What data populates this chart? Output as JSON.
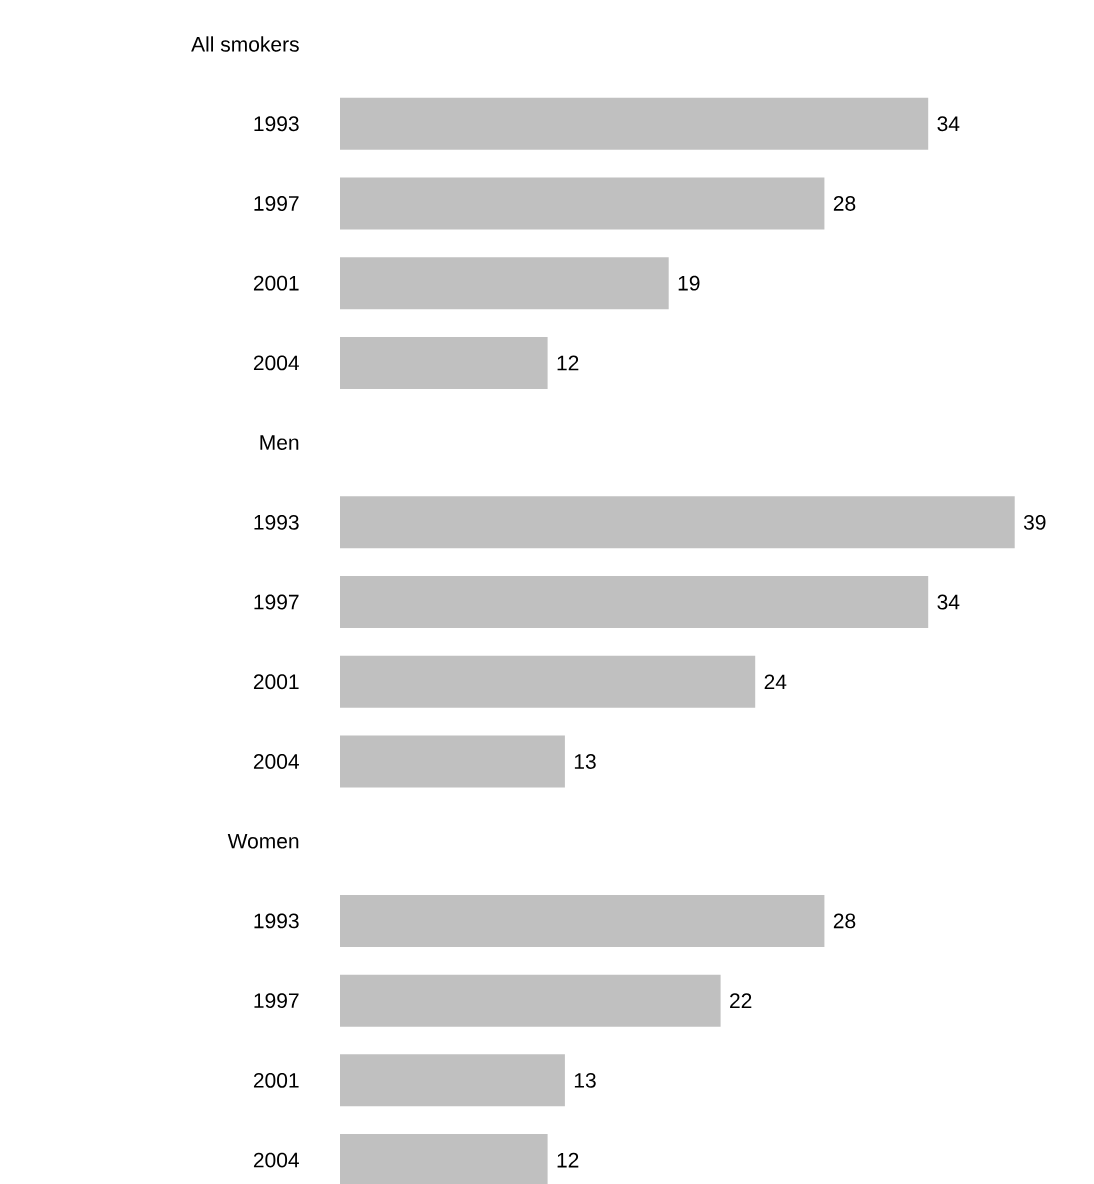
{
  "chart_data": {
    "type": "bar",
    "orientation": "horizontal",
    "color": "#c0c0c0",
    "data_labels": true,
    "categories": [
      "All smokers",
      "1993",
      "1997",
      "2001",
      "2004",
      "Men",
      "1993",
      "1997",
      "2001",
      "2004",
      "Women",
      "1993",
      "1997",
      "2001",
      "2004"
    ],
    "values": [
      null,
      34,
      28,
      19,
      12,
      null,
      39,
      34,
      24,
      13,
      null,
      28,
      22,
      13,
      12
    ]
  }
}
